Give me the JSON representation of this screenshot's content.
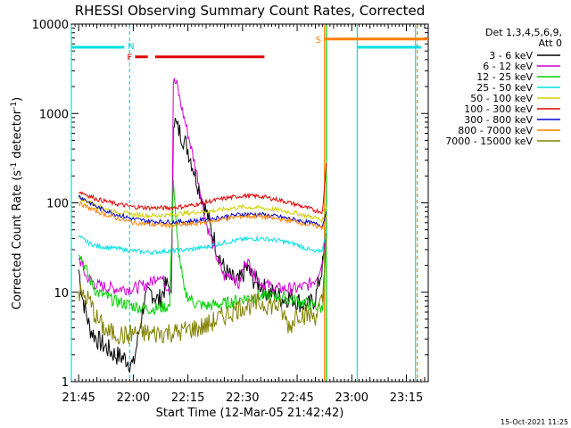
{
  "chart_data": {
    "type": "line",
    "title": "RHESSI Observing Summary Count Rates, Corrected",
    "xlabel": "Start Time (12-Mar-05 21:42:42)",
    "ylabel": "Corrected Count Rate (s⁻¹ detector⁻¹)",
    "ylabel_parts": [
      "Corrected Count Rate (s",
      "-1",
      " detector",
      "-1",
      ")"
    ],
    "ylog": true,
    "ylim": [
      1,
      10000
    ],
    "xlim_minutes": [
      -17,
      20
    ],
    "x_unit": "minutes from 22:00",
    "x_ticks": [
      {
        "minute": -15,
        "label": "21:45"
      },
      {
        "minute": 0,
        "label": "22:00"
      },
      {
        "minute": 15,
        "label": "22:15"
      },
      {
        "minute": 30,
        "label": "22:30"
      },
      {
        "minute": 45,
        "label": "22:45"
      },
      {
        "minute": 60,
        "label": "23:00"
      },
      {
        "minute": 75,
        "label": "23:15"
      }
    ],
    "x_range_minutes": [
      -17,
      81
    ],
    "y_ticks": [
      {
        "value": 1,
        "label": "1"
      },
      {
        "value": 10,
        "label": "10"
      },
      {
        "value": 100,
        "label": "100"
      },
      {
        "value": 1000,
        "label": "1000"
      },
      {
        "value": 10000,
        "label": "10000"
      }
    ],
    "legend_title": [
      "Det 1,3,4,5,6,9,",
      "Att 0"
    ],
    "legend_placement": "right",
    "series": [
      {
        "name": "3 - 6 keV",
        "color": "#000000",
        "x": [
          -15,
          -14,
          -13,
          -12,
          -10,
          -8,
          -5,
          -2,
          0,
          3,
          5,
          7,
          9,
          10.5,
          11,
          12,
          13,
          15,
          18,
          20,
          23,
          25,
          27,
          29,
          31,
          33,
          35,
          37,
          39,
          41,
          43,
          45,
          48,
          50,
          52,
          53
        ],
        "y": [
          18,
          9,
          6,
          4,
          3,
          2.5,
          2,
          1.8,
          1.5,
          8,
          10,
          8,
          12,
          11,
          900,
          700,
          600,
          400,
          150,
          80,
          30,
          18,
          14,
          13,
          19,
          14,
          12,
          10,
          9.5,
          8.5,
          9,
          8,
          7,
          8.5,
          20,
          45
        ]
      },
      {
        "name": "6 - 12 keV",
        "color": "#d000d0",
        "x": [
          -15,
          -13,
          -10,
          -5,
          0,
          3,
          5,
          7,
          9,
          10.5,
          11,
          12,
          13,
          15,
          18,
          20,
          23,
          25,
          27,
          29,
          31,
          33,
          35,
          37,
          39,
          41,
          43,
          45,
          48,
          50,
          52,
          53
        ],
        "y": [
          25,
          15,
          12,
          11,
          11,
          12,
          13,
          16,
          12,
          11,
          2300,
          2100,
          1300,
          600,
          170,
          60,
          24,
          15,
          16,
          12,
          24,
          16,
          13,
          12,
          11,
          11,
          11,
          11,
          12,
          14,
          22,
          60
        ]
      },
      {
        "name": "12 - 25 keV",
        "color": "#00d000",
        "x": [
          -15,
          -12,
          -10,
          -5,
          0,
          5,
          10,
          11,
          12,
          14,
          17,
          20,
          25,
          30,
          35,
          40,
          45,
          50,
          52,
          53
        ],
        "y": [
          30,
          14,
          10,
          8,
          7,
          6.5,
          7,
          180,
          40,
          10,
          7.5,
          7,
          7.5,
          8.5,
          9,
          9,
          8,
          7,
          6.5,
          60
        ]
      },
      {
        "name": "25 - 50 keV",
        "color": "#00e0e0",
        "x": [
          -15,
          -12,
          -10,
          -5,
          0,
          5,
          10,
          15,
          20,
          25,
          30,
          35,
          40,
          45,
          50,
          52,
          53
        ],
        "y": [
          42,
          35,
          33,
          31,
          29,
          28,
          29,
          30,
          32,
          36,
          39,
          40,
          38,
          34,
          28,
          30,
          50
        ]
      },
      {
        "name": "50 - 100 keV",
        "color": "#d0d000",
        "x": [
          -15,
          -10,
          -5,
          0,
          5,
          10,
          15,
          20,
          25,
          30,
          35,
          40,
          45,
          50,
          52,
          53
        ],
        "y": [
          115,
          92,
          80,
          74,
          72,
          73,
          77,
          80,
          85,
          90,
          88,
          83,
          76,
          68,
          64,
          90
        ]
      },
      {
        "name": "100 - 300 keV",
        "color": "#e00000",
        "x": [
          -15,
          -10,
          -5,
          0,
          5,
          10,
          15,
          20,
          25,
          30,
          35,
          40,
          45,
          50,
          52,
          53
        ],
        "y": [
          135,
          110,
          98,
          90,
          88,
          88,
          92,
          102,
          112,
          120,
          118,
          108,
          95,
          82,
          80,
          280
        ]
      },
      {
        "name": "300 - 800 keV",
        "color": "#0000d0",
        "x": [
          -15,
          -10,
          -5,
          0,
          5,
          10,
          15,
          20,
          25,
          30,
          35,
          40,
          45,
          50,
          52,
          53
        ],
        "y": [
          120,
          90,
          75,
          66,
          62,
          61,
          62,
          65,
          70,
          75,
          74,
          70,
          64,
          58,
          56,
          80
        ]
      },
      {
        "name": "800 - 7000 keV",
        "color": "#ff7f00",
        "x": [
          -15,
          -10,
          -5,
          0,
          5,
          10,
          15,
          20,
          25,
          30,
          35,
          40,
          45,
          50,
          52,
          53
        ],
        "y": [
          100,
          80,
          68,
          60,
          57,
          56,
          57,
          61,
          66,
          71,
          70,
          66,
          61,
          55,
          53,
          70
        ]
      },
      {
        "name": "7000 - 15000 keV",
        "color": "#808000",
        "x": [
          -15,
          -12,
          -10,
          -7,
          -5,
          -2,
          0,
          3,
          5,
          8,
          10,
          12,
          15,
          18,
          20,
          25,
          30,
          35,
          40,
          43,
          45,
          48,
          50,
          52,
          53
        ],
        "y": [
          10,
          8,
          5,
          3.5,
          3.5,
          3.2,
          3.5,
          3.5,
          3.4,
          3.5,
          3.6,
          3.5,
          3.8,
          4,
          4.2,
          5.5,
          7,
          7.5,
          7,
          4,
          6,
          5.5,
          5.5,
          8,
          40
        ]
      }
    ],
    "annotations": {
      "N": {
        "label": "N",
        "color": "#00e0e0",
        "x_start": -17,
        "x_end": -2.5,
        "level": 5500
      },
      "N2": {
        "label": "",
        "color": "#00e0e0",
        "x_start": 61.5,
        "x_end": 79,
        "level": 5500
      },
      "F": {
        "label": "F",
        "color": "#e00000",
        "segments": [
          [
            0.5,
            4
          ],
          [
            6,
            36
          ]
        ],
        "level": 4300
      },
      "S": {
        "label": "S",
        "color": "#ff7f00",
        "x_start": 52.5,
        "x_end": 81,
        "level": 6800
      },
      "vlines": [
        {
          "x": -17,
          "color": "#00e0e0",
          "style": "solid"
        },
        {
          "x": -1,
          "color": "#00e0e0",
          "style": "dashed"
        },
        {
          "x": 52.5,
          "color": "#ff7f00",
          "style": "solid"
        },
        {
          "x": 53,
          "color": "#00d000",
          "style": "solid"
        },
        {
          "x": 61.5,
          "color": "#00e0e0",
          "style": "solid"
        },
        {
          "x": 77.5,
          "color": "#00e0e0",
          "style": "solid"
        },
        {
          "x": 78,
          "color": "#ff7f00",
          "style": "dashed"
        }
      ]
    },
    "footer_date": "15-Oct-2021 11:25"
  }
}
